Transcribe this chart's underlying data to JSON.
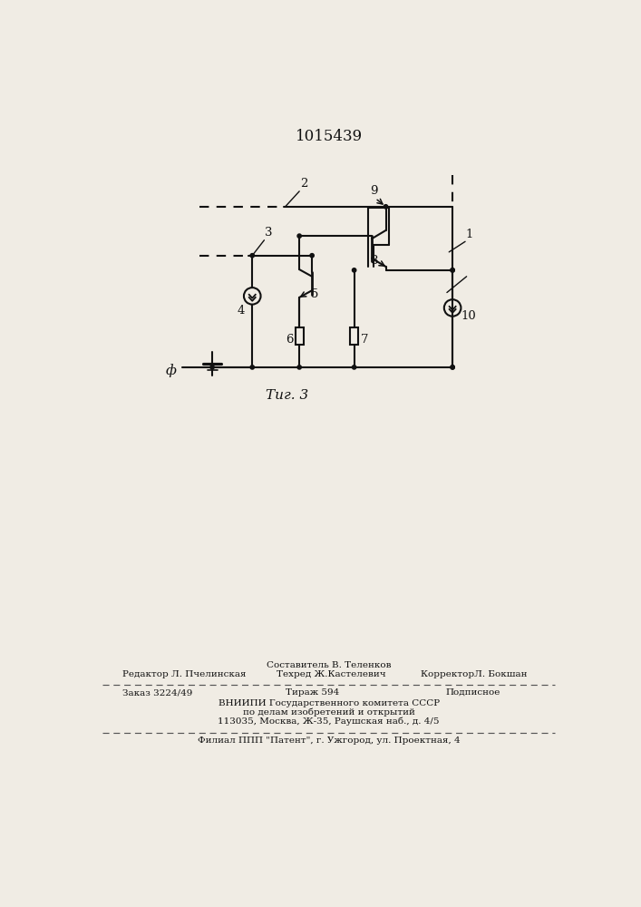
{
  "patent_number": "1015439",
  "fig_label": "Τиг. 3",
  "background_color": "#f0ece4",
  "line_color": "#111111",
  "text_color": "#111111",
  "footer": {
    "sestavitel": "Составитель В. Теленков",
    "redaktor": "Редактор Л. Пчелинская",
    "tehred": "Техред Ж.Кастелевич",
    "korrektor": "КорректорЛ. Бокшан",
    "zakaz": "Заказ 3224/49",
    "tirazh": "Тираж 594",
    "podpisnoe": "Подписное",
    "vnipi_line1": "ВНИИПИ Государственного комитета СССР",
    "vnipi_line2": "по делам изобретений и открытий",
    "vnipi_line3": "113035, Москва, Ж-35, Раушская наб., д. 4/5",
    "filial": "Филиал ППП \"Патент\", г. Ужгород, ул. Проектная, 4"
  }
}
